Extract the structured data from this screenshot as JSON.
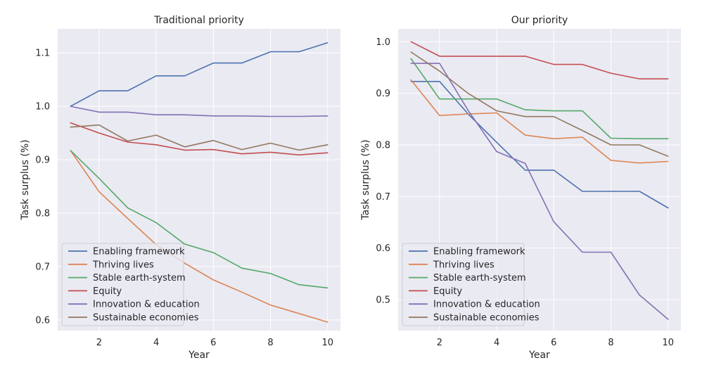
{
  "figure": {
    "colors": {
      "background": "#eaeaf2",
      "grid": "#ffffff",
      "text": "#262626"
    }
  },
  "chart_data": [
    {
      "type": "line",
      "title": "Traditional priority",
      "xlabel": "Year",
      "ylabel": "Task surplus (%)",
      "xlim": [
        0.55,
        10.45
      ],
      "ylim": [
        0.58,
        1.145
      ],
      "xticks": [
        2,
        4,
        6,
        8,
        10
      ],
      "xtick_labels": [
        "2",
        "4",
        "6",
        "8",
        "10"
      ],
      "yticks": [
        0.6,
        0.7,
        0.8,
        0.9,
        1.0,
        1.1
      ],
      "ytick_labels": [
        "0.6",
        "0.7",
        "0.8",
        "0.9",
        "1.0",
        "1.1"
      ],
      "grid": true,
      "legend_position": "lower-left",
      "x": [
        1,
        2,
        3,
        4,
        5,
        6,
        7,
        8,
        9,
        10
      ],
      "series": [
        {
          "name": "Enabling framework",
          "color": "#4c72b0",
          "values": [
            1.0,
            1.029,
            1.029,
            1.057,
            1.057,
            1.081,
            1.081,
            1.102,
            1.102,
            1.119
          ]
        },
        {
          "name": "Thriving lives",
          "color": "#dd8452",
          "values": [
            0.917,
            0.84,
            0.79,
            0.741,
            0.706,
            0.675,
            0.652,
            0.628,
            0.612,
            0.596
          ]
        },
        {
          "name": "Stable earth-system",
          "color": "#55a868",
          "values": [
            0.917,
            0.865,
            0.81,
            0.782,
            0.742,
            0.726,
            0.697,
            0.687,
            0.666,
            0.66
          ]
        },
        {
          "name": "Equity",
          "color": "#c44e52",
          "values": [
            0.969,
            0.95,
            0.933,
            0.928,
            0.918,
            0.919,
            0.911,
            0.914,
            0.909,
            0.913
          ]
        },
        {
          "name": "Innovation & education",
          "color": "#8172b3",
          "values": [
            1.0,
            0.989,
            0.989,
            0.984,
            0.984,
            0.982,
            0.982,
            0.981,
            0.981,
            0.982
          ]
        },
        {
          "name": "Sustainable economies",
          "color": "#937860",
          "values": [
            0.961,
            0.965,
            0.935,
            0.946,
            0.924,
            0.936,
            0.919,
            0.931,
            0.918,
            0.928
          ]
        }
      ]
    },
    {
      "type": "line",
      "title": "Our priority",
      "xlabel": "Year",
      "ylabel": "Task surplus (%)",
      "xlim": [
        0.55,
        10.45
      ],
      "ylim": [
        0.44,
        1.025
      ],
      "xticks": [
        2,
        4,
        6,
        8,
        10
      ],
      "xtick_labels": [
        "2",
        "4",
        "6",
        "8",
        "10"
      ],
      "yticks": [
        0.5,
        0.6,
        0.7,
        0.8,
        0.9,
        1.0
      ],
      "ytick_labels": [
        "0.5",
        "0.6",
        "0.7",
        "0.8",
        "0.9",
        "1.0"
      ],
      "grid": true,
      "legend_position": "lower-left",
      "x": [
        1,
        2,
        3,
        4,
        5,
        6,
        7,
        8,
        9,
        10
      ],
      "series": [
        {
          "name": "Enabling framework",
          "color": "#4c72b0",
          "values": [
            0.923,
            0.923,
            0.86,
            0.805,
            0.751,
            0.751,
            0.71,
            0.71,
            0.71,
            0.678
          ]
        },
        {
          "name": "Thriving lives",
          "color": "#dd8452",
          "values": [
            0.926,
            0.857,
            0.86,
            0.862,
            0.819,
            0.812,
            0.815,
            0.77,
            0.765,
            0.768
          ]
        },
        {
          "name": "Stable earth-system",
          "color": "#55a868",
          "values": [
            0.967,
            0.889,
            0.889,
            0.889,
            0.868,
            0.866,
            0.866,
            0.813,
            0.812,
            0.812
          ]
        },
        {
          "name": "Equity",
          "color": "#c44e52",
          "values": [
            1.0,
            0.972,
            0.972,
            0.972,
            0.972,
            0.956,
            0.956,
            0.939,
            0.928,
            0.928
          ]
        },
        {
          "name": "Innovation & education",
          "color": "#8172b3",
          "values": [
            0.958,
            0.958,
            0.867,
            0.787,
            0.764,
            0.651,
            0.592,
            0.592,
            0.509,
            0.462
          ]
        },
        {
          "name": "Sustainable economies",
          "color": "#937860",
          "values": [
            0.98,
            0.943,
            0.9,
            0.866,
            0.855,
            0.855,
            0.828,
            0.8,
            0.8,
            0.778
          ]
        }
      ]
    }
  ]
}
